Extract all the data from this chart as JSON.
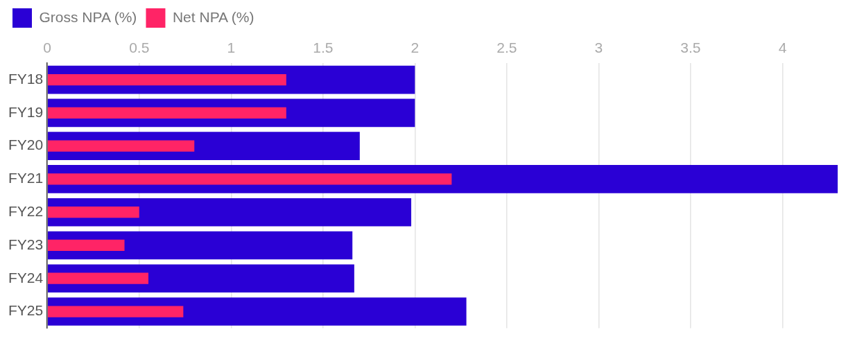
{
  "chart_data": {
    "type": "bar",
    "orientation": "horizontal",
    "categories": [
      "FY18",
      "FY19",
      "FY20",
      "FY21",
      "FY22",
      "FY23",
      "FY24",
      "FY25"
    ],
    "series": [
      {
        "name": "Gross NPA (%)",
        "color": "#2a00d5",
        "values": [
          2.0,
          2.0,
          1.7,
          4.3,
          1.98,
          1.66,
          1.67,
          2.28
        ]
      },
      {
        "name": "Net NPA (%)",
        "color": "#ff2466",
        "values": [
          1.3,
          1.3,
          0.8,
          2.2,
          0.5,
          0.42,
          0.55,
          0.74
        ]
      }
    ],
    "xlim": [
      0,
      4.3
    ],
    "xticks": [
      0,
      0.5,
      1,
      1.5,
      2,
      2.5,
      3,
      3.5,
      4
    ],
    "grid": "x",
    "legend": "top left"
  }
}
